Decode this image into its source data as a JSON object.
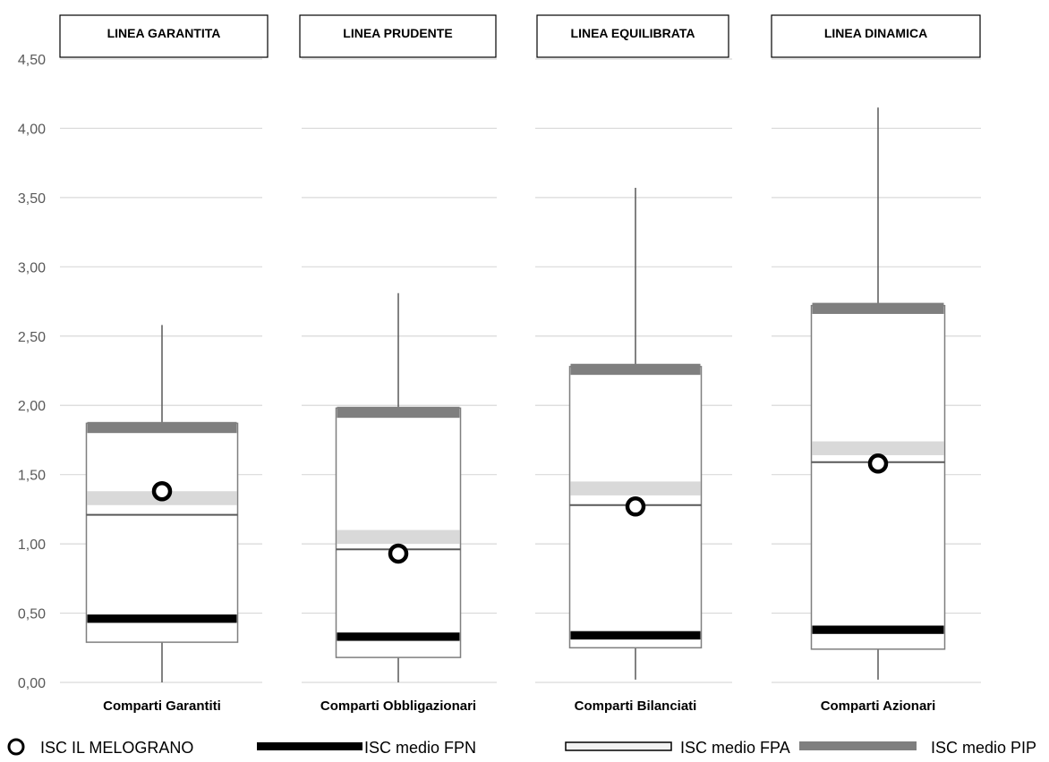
{
  "chart_data": {
    "type": "box",
    "y_ticks": [
      "0,00",
      "0,50",
      "1,00",
      "1,50",
      "2,00",
      "2,50",
      "3,00",
      "3,50",
      "4,00",
      "4,50"
    ],
    "ylim": [
      0,
      4.5
    ],
    "grid": true,
    "groups": [
      {
        "header": "LINEA GARANTITA",
        "category": "Comparti Garantiti",
        "min": 0.0,
        "q1": 0.29,
        "median": 1.21,
        "q3": 1.87,
        "max": 2.58,
        "isc_il_melograno": 1.38,
        "isc_medio_fpn": 0.46,
        "isc_medio_fpa": 1.37,
        "isc_medio_pip": 1.83
      },
      {
        "header": "LINEA PRUDENTE",
        "category": "Comparti Obbligazionari",
        "min": 0.0,
        "q1": 0.18,
        "median": 0.96,
        "q3": 1.98,
        "max": 2.81,
        "isc_il_melograno": 0.93,
        "isc_medio_fpn": 0.33,
        "isc_medio_fpa": 1.09,
        "isc_medio_pip": 1.94
      },
      {
        "header": "LINEA EQUILIBRATA",
        "category": "Comparti Bilanciati",
        "min": 0.02,
        "q1": 0.25,
        "median": 1.28,
        "q3": 2.28,
        "max": 3.57,
        "isc_il_melograno": 1.27,
        "isc_medio_fpn": 0.34,
        "isc_medio_fpa": 1.44,
        "isc_medio_pip": 2.25
      },
      {
        "header": "LINEA DINAMICA",
        "category": "Comparti Azionari",
        "min": 0.02,
        "q1": 0.24,
        "median": 1.59,
        "q3": 2.72,
        "max": 4.15,
        "isc_il_melograno": 1.58,
        "isc_medio_fpn": 0.38,
        "isc_medio_fpa": 1.73,
        "isc_medio_pip": 2.69
      }
    ],
    "legend": {
      "placement": "bottom",
      "items": [
        {
          "label": "ISC IL MELOGRANO",
          "symbol": "circle"
        },
        {
          "label": "ISC medio FPN",
          "symbol": "black-bar"
        },
        {
          "label": "ISC medio FPA",
          "symbol": "outlined-bar"
        },
        {
          "label": "ISC medio PIP",
          "symbol": "gray-bar"
        }
      ]
    },
    "colors": {
      "fpn": "#000000",
      "fpa": "#d9d9d9",
      "pip": "#7f7f7f",
      "box_border": "#7f7f7f",
      "grid": "#d9d9d9",
      "marker": "#000000"
    }
  }
}
